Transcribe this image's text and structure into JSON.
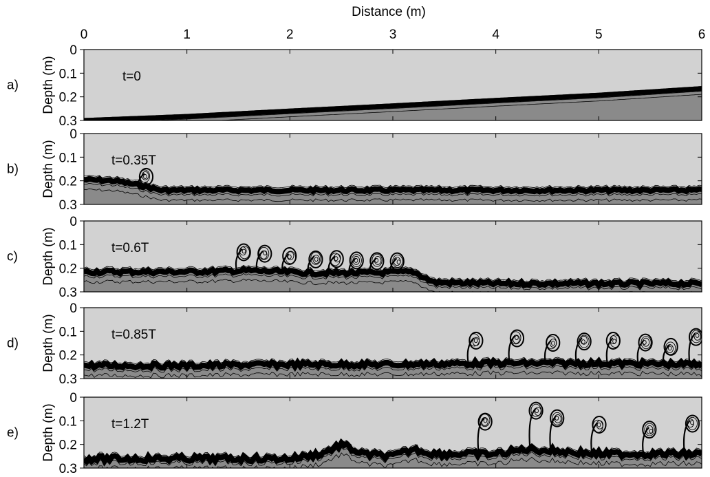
{
  "chart_data": {
    "type": "area",
    "xlabel": "Distance (m)",
    "ylabel": "Depth (m)",
    "xlim": [
      0,
      6
    ],
    "ylim": [
      0,
      0.3
    ],
    "y_inverted": true,
    "x_ticks": [
      "0",
      "1",
      "2",
      "3",
      "4",
      "5",
      "6"
    ],
    "y_ticks": [
      "0",
      "0.1",
      "0.2",
      "0.3"
    ],
    "x_axis_position": "top",
    "grid": false,
    "colors": {
      "upper_layer": "#d2d2d2",
      "lower_layer": "#8a8a8a",
      "contours": "#000000"
    },
    "panels": [
      {
        "letter": "a)",
        "time": "t=0",
        "interface": [
          [
            0,
            0.3
          ],
          [
            1,
            0.283
          ],
          [
            2,
            0.26
          ],
          [
            3,
            0.238
          ],
          [
            4,
            0.215
          ],
          [
            5,
            0.193
          ],
          [
            6,
            0.165
          ]
        ],
        "billows": []
      },
      {
        "letter": "b)",
        "time": "t=0.35T",
        "interface": [
          [
            0,
            0.195
          ],
          [
            0.3,
            0.2
          ],
          [
            0.55,
            0.22
          ],
          [
            0.75,
            0.24
          ],
          [
            1,
            0.24
          ],
          [
            2,
            0.24
          ],
          [
            3,
            0.24
          ],
          [
            4,
            0.24
          ],
          [
            5,
            0.24
          ],
          [
            6,
            0.24
          ]
        ],
        "billows": [
          [
            0.6,
            0.18
          ]
        ]
      },
      {
        "letter": "c)",
        "time": "t=0.6T",
        "interface": [
          [
            0,
            0.215
          ],
          [
            1,
            0.215
          ],
          [
            1.6,
            0.21
          ],
          [
            2.2,
            0.22
          ],
          [
            2.8,
            0.22
          ],
          [
            3.2,
            0.215
          ],
          [
            3.4,
            0.26
          ],
          [
            4,
            0.265
          ],
          [
            5,
            0.265
          ],
          [
            6,
            0.265
          ]
        ],
        "billows": [
          [
            1.55,
            0.13
          ],
          [
            1.75,
            0.14
          ],
          [
            2.0,
            0.15
          ],
          [
            2.25,
            0.16
          ],
          [
            2.45,
            0.16
          ],
          [
            2.65,
            0.17
          ],
          [
            2.85,
            0.17
          ],
          [
            3.05,
            0.17
          ]
        ]
      },
      {
        "letter": "d)",
        "time": "t=0.85T",
        "interface": [
          [
            0,
            0.245
          ],
          [
            1,
            0.245
          ],
          [
            2,
            0.24
          ],
          [
            3,
            0.24
          ],
          [
            4,
            0.235
          ],
          [
            5,
            0.235
          ],
          [
            6,
            0.24
          ]
        ],
        "billows": [
          [
            3.8,
            0.14
          ],
          [
            4.2,
            0.13
          ],
          [
            4.55,
            0.15
          ],
          [
            4.85,
            0.14
          ],
          [
            5.15,
            0.14
          ],
          [
            5.45,
            0.15
          ],
          [
            5.7,
            0.17
          ],
          [
            5.95,
            0.12
          ]
        ]
      },
      {
        "letter": "e)",
        "time": "t=1.2T",
        "interface": [
          [
            0,
            0.26
          ],
          [
            1,
            0.26
          ],
          [
            2,
            0.26
          ],
          [
            2.3,
            0.24
          ],
          [
            2.5,
            0.2
          ],
          [
            2.7,
            0.24
          ],
          [
            3.0,
            0.25
          ],
          [
            3.2,
            0.22
          ],
          [
            3.4,
            0.24
          ],
          [
            4,
            0.24
          ],
          [
            4.3,
            0.22
          ],
          [
            5,
            0.24
          ],
          [
            6,
            0.24
          ]
        ],
        "billows": [
          [
            3.9,
            0.1
          ],
          [
            4.4,
            0.06
          ],
          [
            4.6,
            0.09
          ],
          [
            5.0,
            0.12
          ],
          [
            5.5,
            0.14
          ],
          [
            5.9,
            0.11
          ]
        ]
      }
    ]
  }
}
